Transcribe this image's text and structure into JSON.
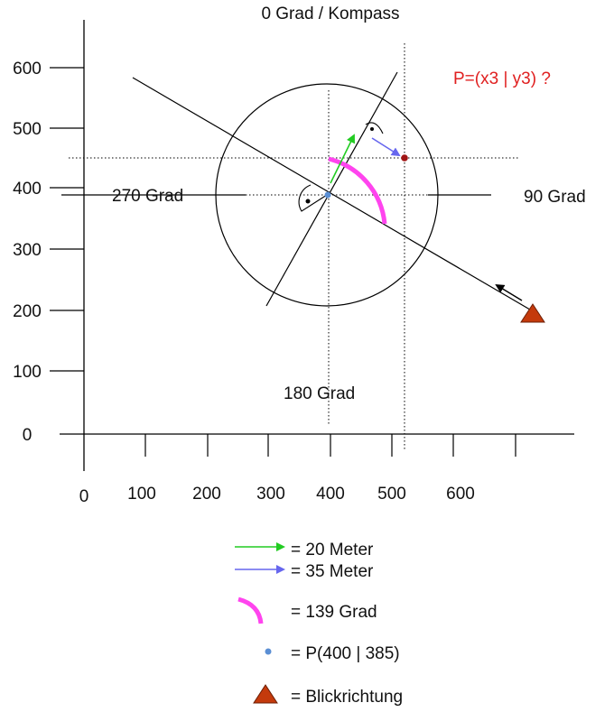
{
  "title": "0 Grad / Kompass",
  "question": "P=(x3 | y3) ?",
  "colors": {
    "axis": "#000000",
    "green_arrow": "#22cc22",
    "blue_arrow": "#6666ee",
    "arc": "#ff44ee",
    "center_point": "#5b8fd4",
    "target_point": "#a01515",
    "triangle_fill": "#c43a0c",
    "question_text": "#e02020"
  },
  "directions": {
    "north": "0 Grad / Kompass",
    "east": "90 Grad",
    "south": "180 Grad",
    "west": "270 Grad"
  },
  "y_ticks": [
    "0",
    "100",
    "200",
    "300",
    "400",
    "500",
    "600"
  ],
  "x_ticks": [
    "0",
    "100",
    "200",
    "300",
    "400",
    "500",
    "600"
  ],
  "legend": [
    {
      "icon": "green-arrow-icon",
      "label": "= 20 Meter"
    },
    {
      "icon": "blue-arrow-icon",
      "label": "= 35 Meter"
    },
    {
      "icon": "pink-arc-icon",
      "label": "= 139 Grad"
    },
    {
      "icon": "blue-dot-icon",
      "label": "= P(400 | 385)"
    },
    {
      "icon": "red-triangle-icon",
      "label": "= Blickrichtung"
    }
  ]
}
